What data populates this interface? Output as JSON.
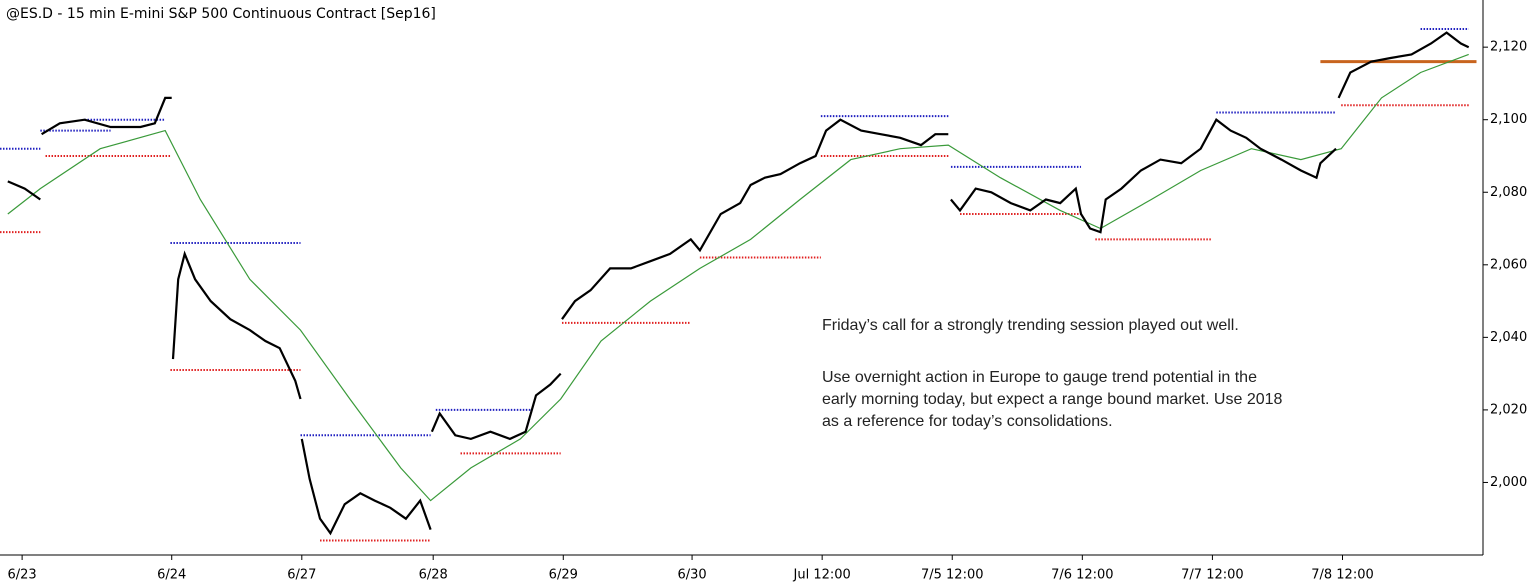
{
  "chart_data": {
    "type": "line",
    "title": "@ES.D - 15 min  E-mini S&P 500 Continuous Contract [Sep16]",
    "annotations": [
      "Friday’s call for a strongly trending session played out well.",
      "Use overnight action in Europe to gauge trend potential in the",
      "early morning today, but expect a range bound market. Use 2018",
      "as a reference for today’s consolidations."
    ],
    "xlim": [
      0,
      11.4
    ],
    "xticks": [
      {
        "value": 0.17,
        "label": "6/23"
      },
      {
        "value": 1.32,
        "label": "6/24"
      },
      {
        "value": 2.32,
        "label": "6/27"
      },
      {
        "value": 3.33,
        "label": "6/28"
      },
      {
        "value": 4.33,
        "label": "6/29"
      },
      {
        "value": 5.32,
        "label": "6/30"
      },
      {
        "value": 6.32,
        "label": "Jul  12:00"
      },
      {
        "value": 7.32,
        "label": "7/5  12:00"
      },
      {
        "value": 8.32,
        "label": "7/6  12:00"
      },
      {
        "value": 9.32,
        "label": "7/7  12:00"
      },
      {
        "value": 10.32,
        "label": "7/8  12:00"
      }
    ],
    "ylim": [
      1980,
      2133
    ],
    "yticks": [
      {
        "value": 2000,
        "label": "2,000"
      },
      {
        "value": 2020,
        "label": "2,020"
      },
      {
        "value": 2040,
        "label": "2,040"
      },
      {
        "value": 2060,
        "label": "2,060"
      },
      {
        "value": 2080,
        "label": "2,080"
      },
      {
        "value": 2100,
        "label": "2,100"
      },
      {
        "value": 2120,
        "label": "2,120"
      }
    ],
    "series": [
      {
        "color": "#000000",
        "x": [
          0.06,
          0.19,
          0.31,
          null,
          0.32,
          0.46,
          0.65,
          0.85,
          1.08,
          1.19,
          1.27,
          1.32,
          null,
          1.33,
          1.37,
          1.42,
          1.5,
          1.62,
          1.77,
          1.92,
          2.04,
          2.15,
          2.27,
          2.31,
          null,
          2.32,
          2.38,
          2.46,
          2.54,
          2.65,
          2.77,
          2.88,
          3.0,
          3.12,
          3.23,
          3.31,
          null,
          3.32,
          3.38,
          3.5,
          3.62,
          3.77,
          3.92,
          4.04,
          4.12,
          4.23,
          4.31,
          null,
          4.32,
          4.42,
          4.54,
          4.69,
          4.85,
          5.0,
          5.15,
          5.31,
          5.38,
          5.54,
          5.69,
          5.77,
          5.88,
          6.0,
          6.15,
          6.27,
          6.35,
          6.46,
          6.62,
          6.77,
          6.92,
          7.08,
          7.19,
          7.29,
          null,
          7.31,
          7.38,
          7.5,
          7.62,
          7.77,
          7.92,
          8.04,
          8.15,
          8.27,
          8.31,
          8.38,
          8.46,
          8.5,
          8.62,
          8.77,
          8.92,
          9.08,
          9.23,
          9.35,
          9.46,
          9.58,
          9.69,
          9.85,
          10.0,
          10.12,
          10.15,
          10.27,
          null,
          10.29,
          10.38,
          10.54,
          10.69,
          10.85,
          11.0,
          11.12,
          11.23,
          11.29
        ],
        "values": [
          2083,
          2081,
          2078,
          null,
          2096,
          2099,
          2100,
          2098,
          2098,
          2099,
          2106,
          2106,
          null,
          2034,
          2056,
          2063,
          2056,
          2050,
          2045,
          2042,
          2039,
          2037,
          2028,
          2023,
          null,
          2012,
          2001,
          1990,
          1986,
          1994,
          1997,
          1995,
          1993,
          1990,
          1995,
          1987,
          null,
          2014,
          2019,
          2013,
          2012,
          2014,
          2012,
          2014,
          2024,
          2027,
          2030,
          null,
          2045,
          2050,
          2053,
          2059,
          2059,
          2061,
          2063,
          2067,
          2064,
          2074,
          2077,
          2082,
          2084,
          2085,
          2088,
          2090,
          2097,
          2100,
          2097,
          2096,
          2095,
          2093,
          2096,
          2096,
          null,
          2078,
          2075,
          2081,
          2080,
          2077,
          2075,
          2078,
          2077,
          2081,
          2074,
          2070,
          2069,
          2078,
          2081,
          2086,
          2089,
          2088,
          2092,
          2100,
          2097,
          2095,
          2092,
          2089,
          2086,
          2084,
          2088,
          2092,
          null,
          2106,
          2113,
          2116,
          2117,
          2118,
          2121,
          2124,
          2121,
          2120
        ]
      },
      {
        "color": "#3a9a3a",
        "x": [
          0.06,
          0.31,
          0.77,
          1.27,
          1.54,
          1.92,
          2.31,
          2.69,
          3.08,
          3.31,
          3.62,
          4.0,
          4.31,
          4.62,
          5.0,
          5.38,
          5.77,
          6.15,
          6.54,
          6.92,
          7.29,
          7.69,
          8.15,
          8.46,
          8.85,
          9.23,
          9.62,
          10.0,
          10.31,
          10.62,
          10.92,
          11.29
        ],
        "values": [
          2074,
          2081,
          2092,
          2097,
          2078,
          2056,
          2042,
          2023,
          2004,
          1995,
          2004,
          2012,
          2023,
          2039,
          2050,
          2059,
          2067,
          2078,
          2089,
          2092,
          2093,
          2084,
          2075,
          2070,
          2078,
          2086,
          2092,
          2089,
          2092,
          2106,
          2113,
          2118
        ]
      }
    ],
    "levels": [
      {
        "value": 2092,
        "x": [
          0,
          0.31
        ],
        "color": "#2020c0"
      },
      {
        "value": 2069,
        "x": [
          0,
          0.31
        ],
        "color": "#e02020"
      },
      {
        "value": 2097,
        "x": [
          0.31,
          0.85
        ],
        "color": "#2020c0"
      },
      {
        "value": 2100,
        "x": [
          0.65,
          1.27
        ],
        "color": "#2020c0"
      },
      {
        "value": 2090,
        "x": [
          0.35,
          1.31
        ],
        "color": "#e02020"
      },
      {
        "value": 2066,
        "x": [
          1.31,
          2.31
        ],
        "color": "#2020c0"
      },
      {
        "value": 2031,
        "x": [
          1.31,
          2.31
        ],
        "color": "#e02020"
      },
      {
        "value": 2013,
        "x": [
          2.31,
          3.31
        ],
        "color": "#2020c0"
      },
      {
        "value": 1984,
        "x": [
          2.46,
          3.31
        ],
        "color": "#e02020"
      },
      {
        "value": 2020,
        "x": [
          3.35,
          4.08
        ],
        "color": "#2020c0"
      },
      {
        "value": 2008,
        "x": [
          3.54,
          4.31
        ],
        "color": "#e02020"
      },
      {
        "value": 2044,
        "x": [
          4.32,
          5.31
        ],
        "color": "#e02020"
      },
      {
        "value": 2062,
        "x": [
          5.38,
          6.31
        ],
        "color": "#e02020"
      },
      {
        "value": 2101,
        "x": [
          6.31,
          7.29
        ],
        "color": "#2020c0"
      },
      {
        "value": 2090,
        "x": [
          6.31,
          7.29
        ],
        "color": "#e02020"
      },
      {
        "value": 2087,
        "x": [
          7.31,
          8.31
        ],
        "color": "#2020c0"
      },
      {
        "value": 2074,
        "x": [
          7.38,
          8.31
        ],
        "color": "#e02020"
      },
      {
        "value": 2067,
        "x": [
          8.42,
          9.31
        ],
        "color": "#e02020"
      },
      {
        "value": 2102,
        "x": [
          9.35,
          10.27
        ],
        "color": "#2020c0"
      },
      {
        "value": 2104,
        "x": [
          10.31,
          11.29
        ],
        "color": "#e02020"
      },
      {
        "value": 2125,
        "x": [
          10.92,
          11.29
        ],
        "color": "#2020c0"
      }
    ],
    "reference_line": {
      "value": 2116,
      "x": [
        10.15,
        11.35
      ],
      "color": "#c8641e"
    }
  }
}
